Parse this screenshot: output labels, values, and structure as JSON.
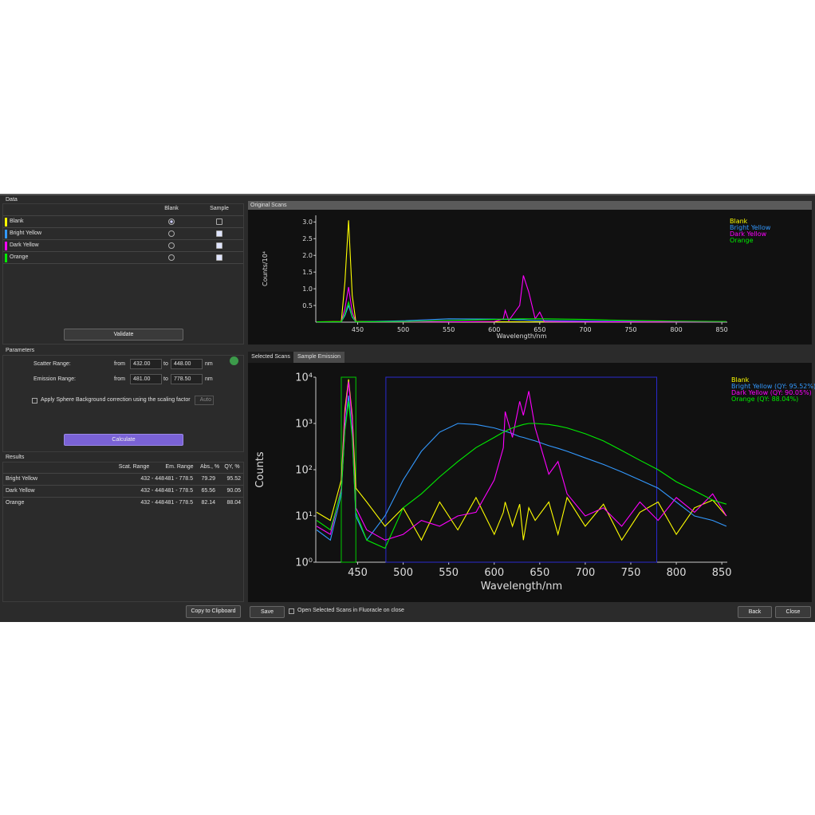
{
  "data_panel": {
    "title": "Data",
    "columns": [
      "Blank",
      "Sample"
    ],
    "rows": [
      {
        "name": "Blank",
        "color": "#ffff00",
        "blank": true,
        "sample": false
      },
      {
        "name": "Bright Yellow",
        "color": "#3399ff",
        "blank": false,
        "sample": true
      },
      {
        "name": "Dark Yellow",
        "color": "#ff00ff",
        "blank": false,
        "sample": true
      },
      {
        "name": "Orange",
        "color": "#00ee00",
        "blank": false,
        "sample": true
      }
    ],
    "validate": "Validate"
  },
  "parameters": {
    "title": "Parameters",
    "scatter_label": "Scatter Range:",
    "emission_label": "Emission Range:",
    "from": "from",
    "to": "to",
    "unit": "nm",
    "scatter": [
      "432.00",
      "448.00"
    ],
    "emission": [
      "481.00",
      "778.50"
    ],
    "checkbox": "Apply Sphere Background correction using the scaling factor",
    "auto": "Auto",
    "calculate": "Calculate"
  },
  "results": {
    "title": "Results",
    "columns": [
      "Scat. Range",
      "Em. Range",
      "Abs., %",
      "QY, %"
    ],
    "rows": [
      [
        "Bright Yellow",
        "432 - 448",
        "481 - 778.5",
        "79.29",
        "95.52"
      ],
      [
        "Dark Yellow",
        "432 - 448",
        "481 - 778.5",
        "65.56",
        "90.05"
      ],
      [
        "Orange",
        "432 - 448",
        "481 - 778.5",
        "82.14",
        "88.04"
      ]
    ],
    "copy": "Copy to Clipboard"
  },
  "original_scans_title": "Original Scans",
  "tabs": [
    "Selected Scans",
    "Sample Emission"
  ],
  "footer": {
    "save": "Save",
    "open_checkbox": "Open Selected Scans in Fluoracle on close",
    "back": "Back",
    "close": "Close"
  },
  "chart_data": [
    {
      "type": "line",
      "xlabel": "Wavelength/nm",
      "ylabel": "Counts/10⁴",
      "xlim": [
        404,
        856
      ],
      "ylim": [
        0,
        3.2
      ],
      "xticks": [
        450,
        500,
        550,
        600,
        650,
        700,
        750,
        800,
        850
      ],
      "yticks": [
        0.5,
        {
          "value": 1,
          "label": "1.0"
        },
        1.5,
        {
          "value": 2,
          "label": "2.0"
        },
        2.5,
        {
          "value": 3,
          "label": "3.0"
        }
      ],
      "x": [
        405,
        432,
        436,
        440,
        444,
        448,
        500,
        550,
        600,
        610,
        612,
        616,
        628,
        632,
        638,
        645,
        650,
        655,
        700,
        750,
        800,
        855
      ],
      "series": [
        {
          "name": "Blank",
          "color": "#ffff00",
          "values": [
            0.01,
            0.02,
            1.2,
            3.05,
            0.8,
            0.02,
            0.01,
            0.01,
            0.01,
            0.01,
            0.01,
            0.01,
            0.01,
            0.01,
            0.01,
            0.01,
            0.01,
            0.01,
            0.01,
            0.01,
            0.01,
            0.01
          ]
        },
        {
          "name": "Bright Yellow",
          "color": "#3399ff",
          "values": [
            0.01,
            0.01,
            0.2,
            0.5,
            0.15,
            0.01,
            0.04,
            0.1,
            0.09,
            0.08,
            0.08,
            0.08,
            0.07,
            0.07,
            0.06,
            0.05,
            0.05,
            0.05,
            0.03,
            0.02,
            0.01,
            0.01
          ]
        },
        {
          "name": "Dark Yellow",
          "color": "#ff00ff",
          "values": [
            0.01,
            0.01,
            0.4,
            1.05,
            0.3,
            0.01,
            0.01,
            0.01,
            0.02,
            0.1,
            0.35,
            0.05,
            0.5,
            1.4,
            0.9,
            0.1,
            0.3,
            0.02,
            0.01,
            0.01,
            0.01,
            0.01
          ]
        },
        {
          "name": "Orange",
          "color": "#00ee00",
          "values": [
            0.01,
            0.01,
            0.25,
            0.6,
            0.18,
            0.01,
            0.02,
            0.05,
            0.08,
            0.09,
            0.09,
            0.09,
            0.1,
            0.1,
            0.1,
            0.1,
            0.1,
            0.1,
            0.08,
            0.05,
            0.03,
            0.02
          ]
        }
      ]
    },
    {
      "type": "line",
      "log_y": true,
      "xlabel": "Wavelength/nm",
      "ylabel": "Counts",
      "xlim": [
        404,
        856
      ],
      "ylim": [
        1,
        10000
      ],
      "xticks": [
        450,
        500,
        550,
        600,
        650,
        700,
        750,
        800,
        850
      ],
      "yticks": [
        {
          "value": 1,
          "label": "10⁰"
        },
        {
          "value": 10,
          "label": "10¹"
        },
        {
          "value": 100,
          "label": "10²"
        },
        {
          "value": 1000,
          "label": "10³"
        },
        {
          "value": 10000,
          "label": "10⁴"
        }
      ],
      "regions": [
        {
          "color": "#00cc00",
          "x": [
            432,
            448
          ]
        },
        {
          "color": "#2a2ad0",
          "x": [
            481,
            778.5
          ]
        }
      ],
      "x": [
        405,
        420,
        432,
        436,
        440,
        444,
        448,
        460,
        480,
        500,
        520,
        540,
        560,
        580,
        600,
        610,
        612,
        620,
        628,
        632,
        638,
        645,
        660,
        670,
        680,
        700,
        720,
        740,
        760,
        780,
        800,
        820,
        840,
        855
      ],
      "series": [
        {
          "name": "Blank",
          "color": "#ffff00",
          "values": [
            12,
            8,
            60,
            2000,
            9000,
            1500,
            40,
            20,
            6,
            15,
            3,
            20,
            5,
            25,
            4,
            12,
            20,
            6,
            18,
            3,
            15,
            8,
            20,
            4,
            25,
            6,
            18,
            3,
            12,
            20,
            4,
            15,
            22,
            10
          ]
        },
        {
          "name": "Bright Yellow (QY: 95.52%)",
          "color": "#3399ff",
          "values": [
            5,
            3,
            30,
            800,
            4000,
            600,
            10,
            3,
            10,
            60,
            250,
            650,
            1000,
            950,
            800,
            700,
            680,
            600,
            520,
            500,
            460,
            420,
            330,
            290,
            250,
            180,
            130,
            90,
            60,
            40,
            20,
            10,
            8,
            6
          ]
        },
        {
          "name": "Dark Yellow (QY: 90.05%)",
          "color": "#ff00ff",
          "values": [
            6,
            4,
            40,
            1500,
            8000,
            1200,
            15,
            5,
            3,
            4,
            8,
            6,
            10,
            12,
            60,
            300,
            1800,
            500,
            3000,
            1500,
            5000,
            800,
            80,
            150,
            30,
            10,
            15,
            6,
            20,
            8,
            25,
            12,
            30,
            10
          ]
        },
        {
          "name": "Orange (QY: 88.04%)",
          "color": "#00ee00",
          "values": [
            8,
            5,
            35,
            700,
            3000,
            500,
            12,
            3,
            2,
            15,
            30,
            70,
            150,
            300,
            500,
            650,
            680,
            800,
            900,
            950,
            1000,
            1000,
            950,
            880,
            800,
            600,
            420,
            260,
            160,
            100,
            55,
            35,
            22,
            18
          ]
        }
      ]
    }
  ]
}
